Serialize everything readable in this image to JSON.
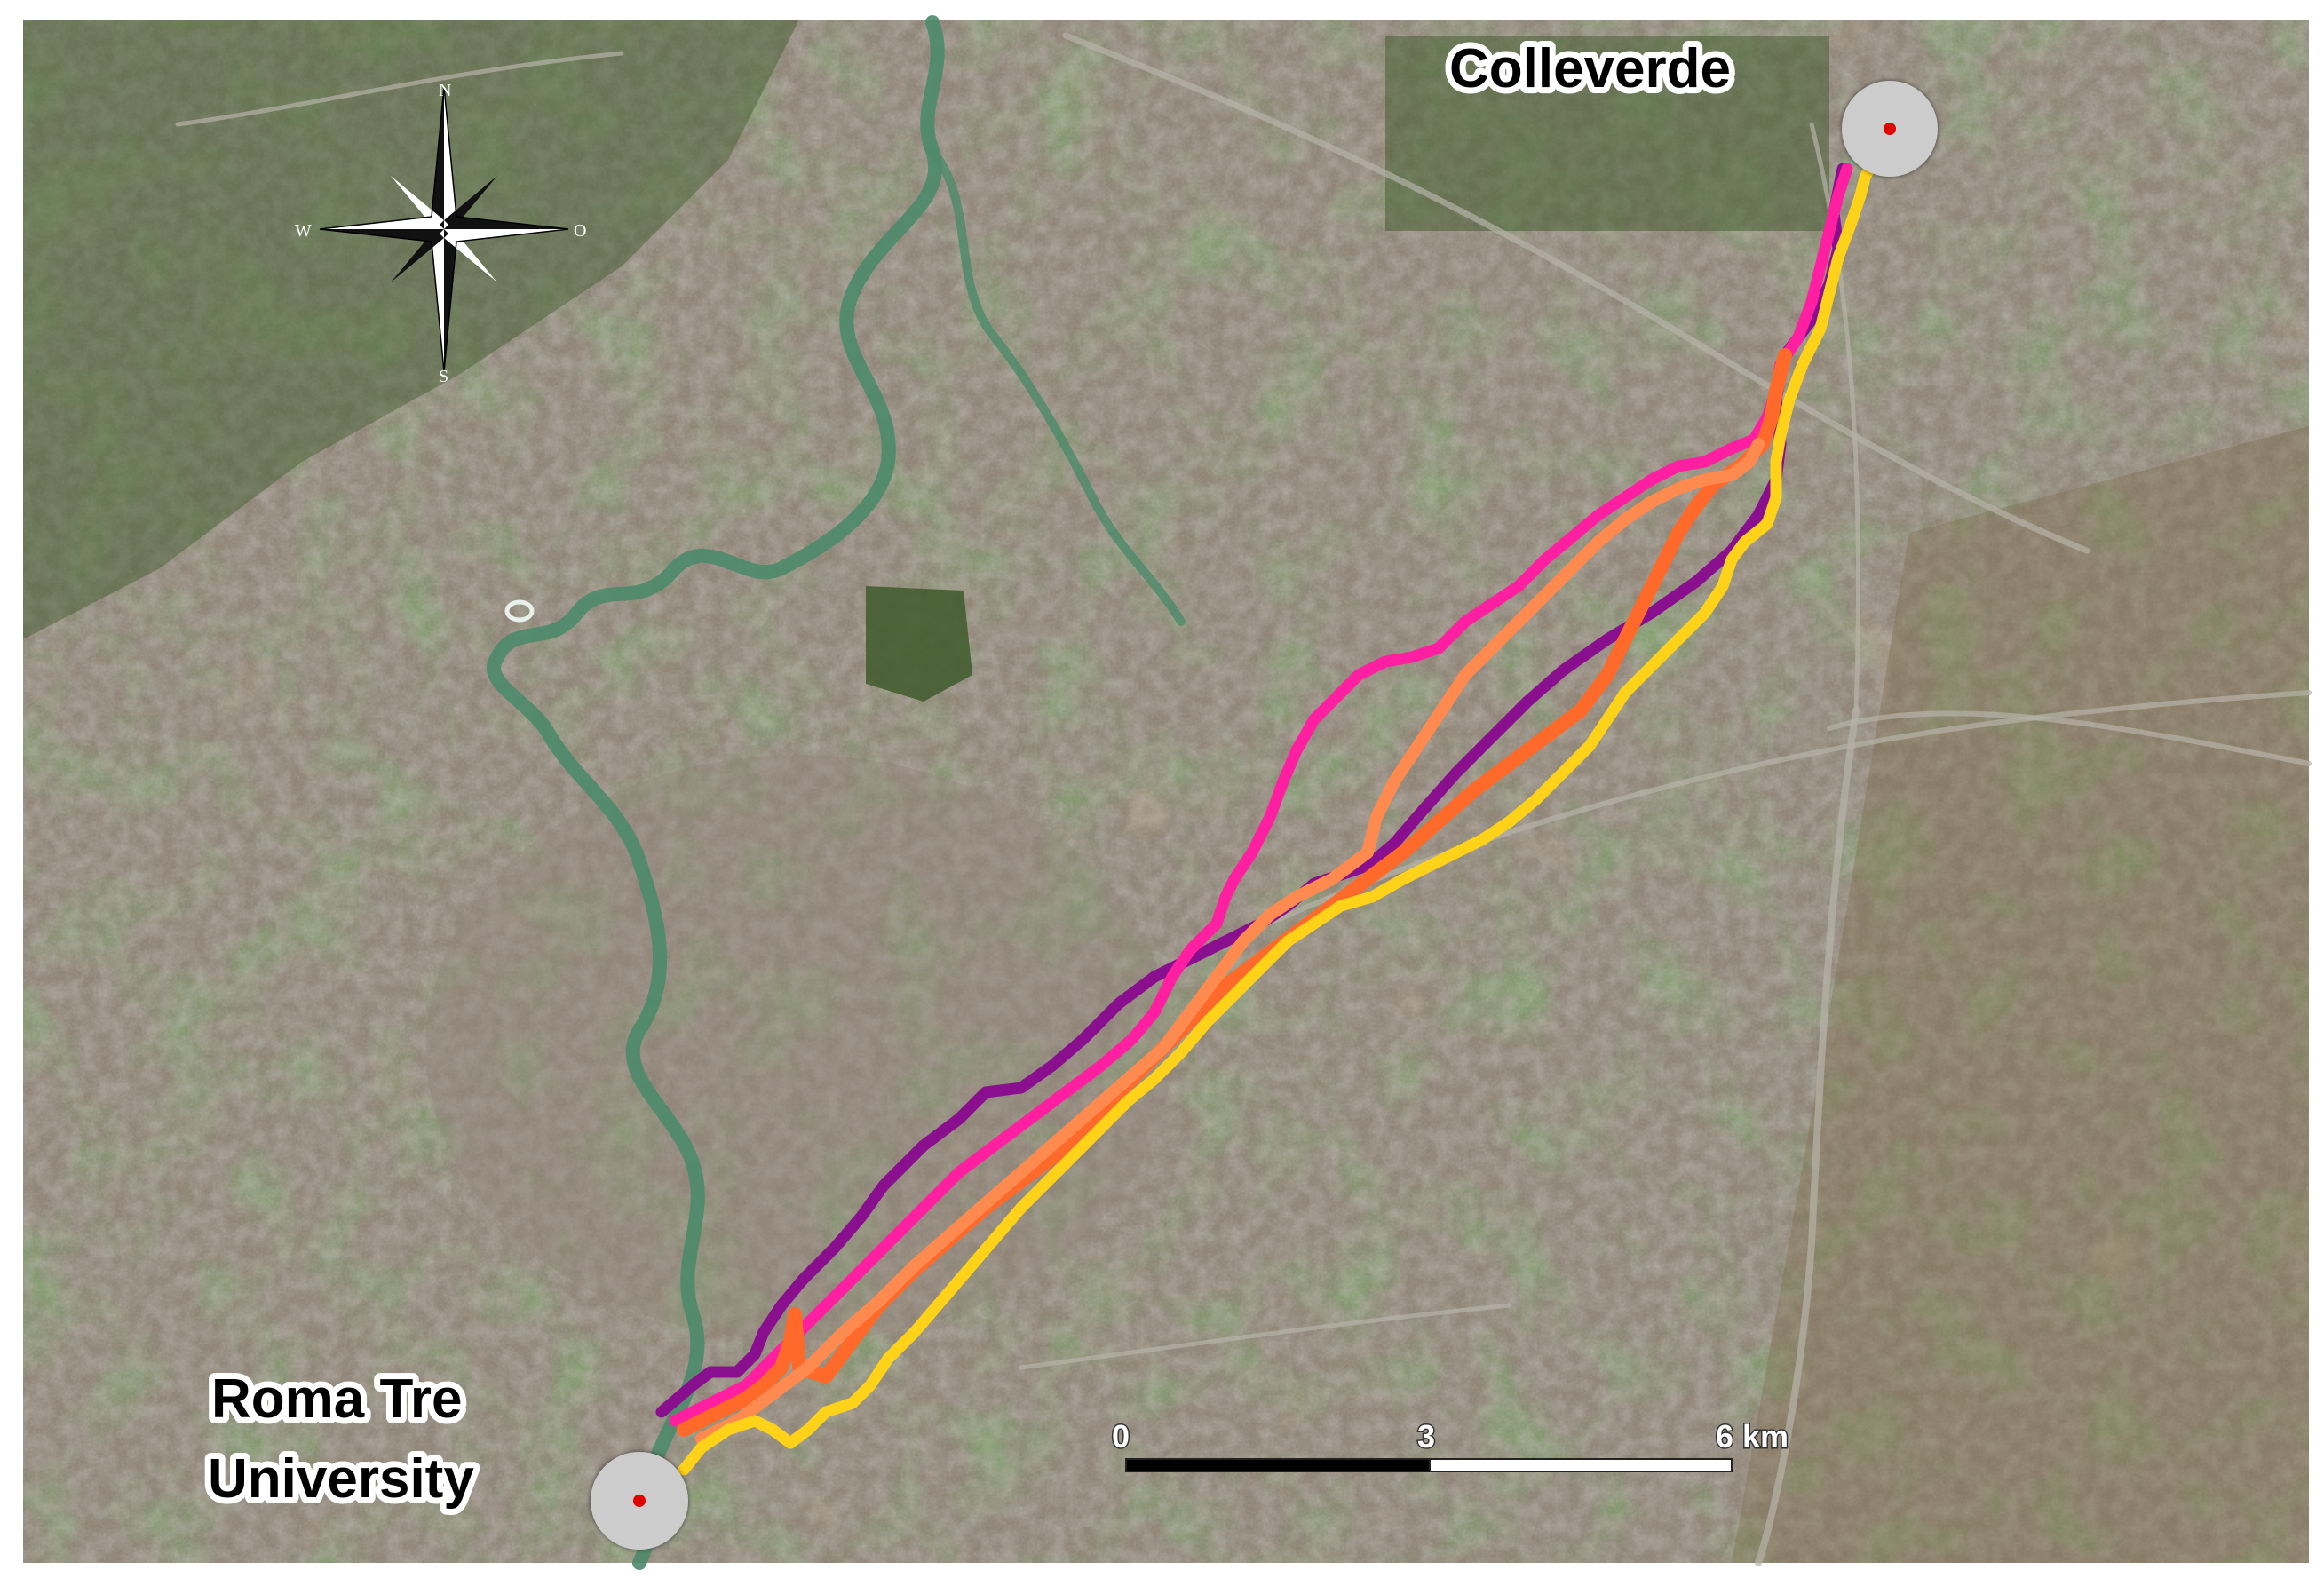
{
  "map": {
    "labels": {
      "origin_line1": "Roma Tre",
      "origin_line2": "University",
      "destination": "Colleverde"
    },
    "compass": {
      "north": "N",
      "south": "S",
      "west": "W",
      "east": "O"
    },
    "scale_bar": {
      "tick_0": "0",
      "tick_mid": "3",
      "tick_end": "6 km",
      "fill_color": "#000000",
      "empty_color": "#ffffff"
    },
    "markers": {
      "circle_color": "#cccccc",
      "dot_color": "#e00000"
    },
    "routes": [
      {
        "color": "#8a0f8e",
        "icon": "route-line"
      },
      {
        "color": "#ff1fa0",
        "icon": "route-line"
      },
      {
        "color": "#ff6a2a",
        "icon": "route-line"
      },
      {
        "color": "#ff8a50",
        "icon": "route-line"
      },
      {
        "color": "#ffd21a",
        "icon": "route-line"
      }
    ],
    "imagery_colors": {
      "urban": "#8f8578",
      "vegetation": "#3f5a2c",
      "river": "#4c8a6a",
      "farmland": "#7c6a48"
    }
  }
}
